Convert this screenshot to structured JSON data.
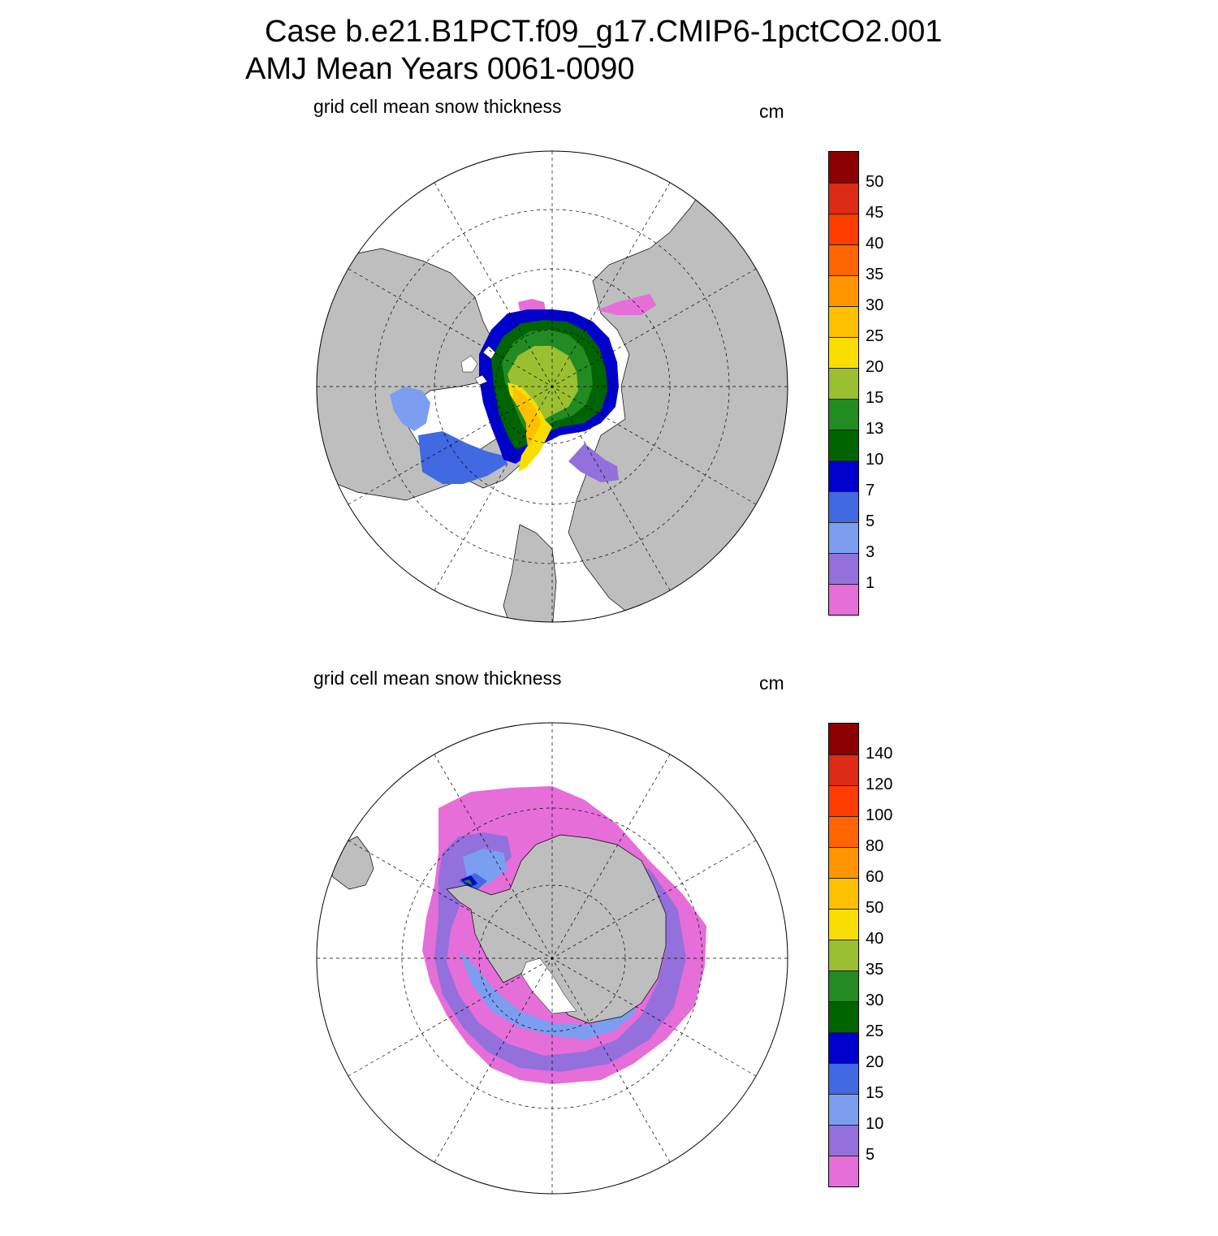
{
  "header": {
    "title_line1": "Case b.e21.B1PCT.f09_g17.CMIP6-1pctCO2.001",
    "title_line2": "AMJ Mean   Years 0061-0090"
  },
  "panels": [
    {
      "id": "north",
      "subtitle": "grid cell mean snow thickness",
      "units": "cm",
      "colorbar": {
        "labels": [
          "50",
          "45",
          "40",
          "35",
          "30",
          "25",
          "20",
          "15",
          "13",
          "10",
          "7",
          "5",
          "3",
          "1"
        ],
        "colors": [
          "#8b0000",
          "#dc2a14",
          "#ff3c00",
          "#ff6400",
          "#ff9600",
          "#ffc000",
          "#f8de00",
          "#9ac032",
          "#228b22",
          "#006400",
          "#0000cd",
          "#4169e1",
          "#7b9ef0",
          "#9370db",
          "#e56ed9"
        ]
      }
    },
    {
      "id": "south",
      "subtitle": "grid cell mean snow thickness",
      "units": "cm",
      "colorbar": {
        "labels": [
          "140",
          "120",
          "100",
          "80",
          "60",
          "50",
          "40",
          "35",
          "30",
          "25",
          "20",
          "15",
          "10",
          "5"
        ],
        "colors": [
          "#8b0000",
          "#dc2a14",
          "#ff3c00",
          "#ff6400",
          "#ff9600",
          "#ffc000",
          "#f8de00",
          "#9ac032",
          "#228b22",
          "#006400",
          "#0000cd",
          "#4169e1",
          "#7b9ef0",
          "#9370db",
          "#e56ed9"
        ]
      }
    }
  ]
}
